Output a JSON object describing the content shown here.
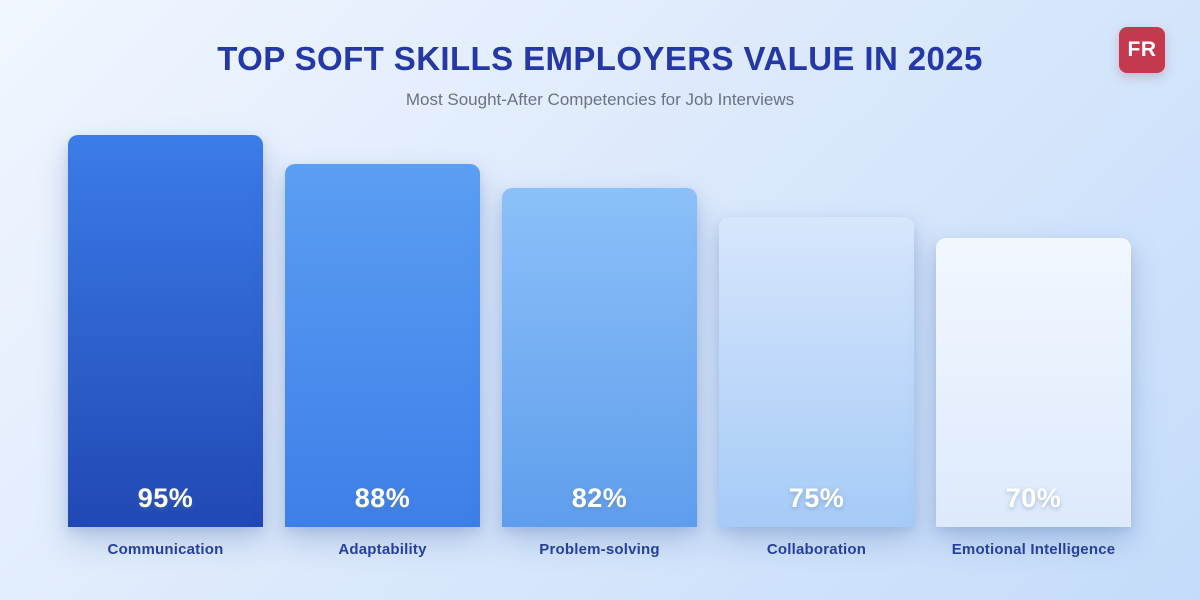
{
  "header": {
    "title": "TOP SOFT SKILLS EMPLOYERS VALUE IN 2025",
    "subtitle": "Most Sought-After Competencies for Job Interviews",
    "brand": "FR"
  },
  "colors": {
    "background_start": "#f1f6fe",
    "background_mid": "#dce9fc",
    "background_end": "#c4dcfa",
    "title": "#2438a6",
    "subtitle": "#6b7280",
    "category_label": "#27409e",
    "value_label": "#ffffff",
    "brand_bg": "#c5394f",
    "brand_text": "#ffffff"
  },
  "chart_data": {
    "type": "bar",
    "title": "TOP SOFT SKILLS EMPLOYERS VALUE IN 2025",
    "subtitle": "Most Sought-After Competencies for Job Interviews",
    "categories": [
      "Communication",
      "Adaptability",
      "Problem-solving",
      "Collaboration",
      "Emotional Intelligence"
    ],
    "values": [
      95,
      88,
      82,
      75,
      70
    ],
    "value_labels": [
      "95%",
      "88%",
      "82%",
      "75%",
      "70%"
    ],
    "unit": "%",
    "ylim": [
      0,
      100
    ],
    "grid": false,
    "legend": false,
    "orientation": "vertical",
    "value_label_position": "inside-bottom",
    "bar_gradients": [
      {
        "top": "#3b7ce9",
        "bottom": "#2148b3"
      },
      {
        "top": "#5b9ef3",
        "bottom": "#3d7fe8"
      },
      {
        "top": "#8cc0f8",
        "bottom": "#5f9eed"
      },
      {
        "top": "#d7e6fc",
        "bottom": "#a6cbf7"
      },
      {
        "top": "#f2f7fe",
        "bottom": "#ddeafc"
      }
    ]
  }
}
